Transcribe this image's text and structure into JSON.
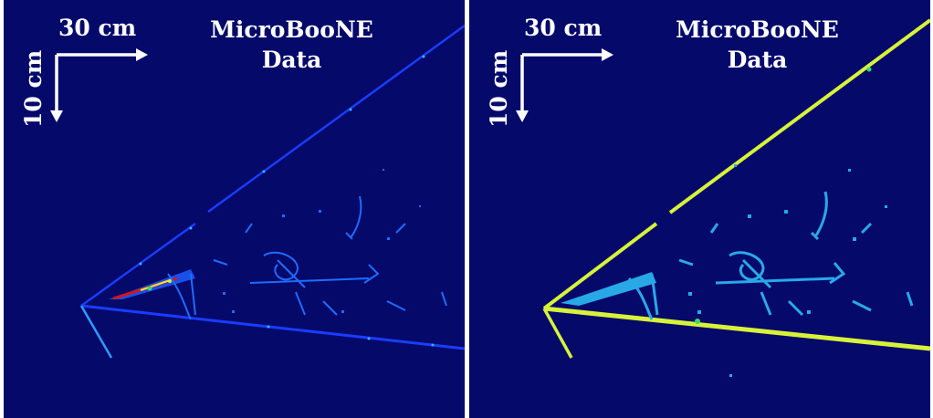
{
  "panels": [
    {
      "id": "left",
      "scale_horizontal": "30 cm",
      "scale_vertical": "10 cm",
      "title_line1": "MicroBooNE",
      "title_line2": "Data",
      "palette": {
        "background": "#04096a",
        "track": "#1a3cff",
        "hit_bright": "#2cb8ff",
        "hot_red": "#d81414",
        "hot_yellow": "#e8e83a",
        "hot_green": "#3ad86a"
      }
    },
    {
      "id": "right",
      "scale_horizontal": "30 cm",
      "scale_vertical": "10 cm",
      "title_line1": "MicroBooNE",
      "title_line2": "Data",
      "palette": {
        "background": "#04096a",
        "track": "#d8f23a",
        "shower": "#29a8e8"
      }
    }
  ]
}
